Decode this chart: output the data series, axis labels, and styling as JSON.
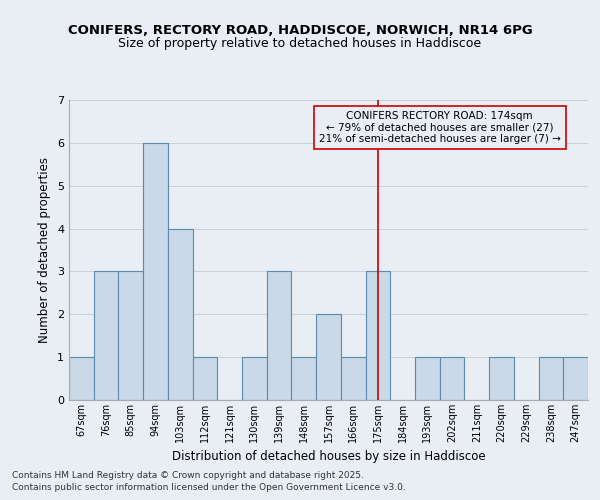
{
  "title_line1": "CONIFERS, RECTORY ROAD, HADDISCOE, NORWICH, NR14 6PG",
  "title_line2": "Size of property relative to detached houses in Haddiscoe",
  "xlabel": "Distribution of detached houses by size in Haddiscoe",
  "ylabel": "Number of detached properties",
  "categories": [
    "67sqm",
    "76sqm",
    "85sqm",
    "94sqm",
    "103sqm",
    "112sqm",
    "121sqm",
    "130sqm",
    "139sqm",
    "148sqm",
    "157sqm",
    "166sqm",
    "175sqm",
    "184sqm",
    "193sqm",
    "202sqm",
    "211sqm",
    "220sqm",
    "229sqm",
    "238sqm",
    "247sqm"
  ],
  "values": [
    1,
    3,
    3,
    6,
    4,
    1,
    0,
    1,
    3,
    1,
    2,
    1,
    3,
    0,
    1,
    1,
    0,
    1,
    0,
    1,
    1
  ],
  "bar_color": "#c9d9e8",
  "bar_edge_color": "#5a8ab0",
  "bar_linewidth": 0.8,
  "grid_color": "#c8d0d8",
  "background_color": "#e8eef4",
  "vline_x": 12.0,
  "vline_color": "#cc0000",
  "ann_title": "CONIFERS RECTORY ROAD: 174sqm",
  "ann_line1": "← 79% of detached houses are smaller (27)",
  "ann_line2": "21% of semi-detached houses are larger (7) →",
  "annotation_box_color": "#cc0000",
  "annotation_text_color": "#000000",
  "annotation_fontsize": 7.5,
  "ylim": [
    0,
    7
  ],
  "yticks": [
    0,
    1,
    2,
    3,
    4,
    5,
    6,
    7
  ],
  "footer_line1": "Contains HM Land Registry data © Crown copyright and database right 2025.",
  "footer_line2": "Contains public sector information licensed under the Open Government Licence v3.0.",
  "footer_fontsize": 6.5,
  "title_fontsize1": 9.5,
  "title_fontsize2": 9.0,
  "xlabel_fontsize": 8.5,
  "ylabel_fontsize": 8.5,
  "tick_fontsize": 7.0
}
